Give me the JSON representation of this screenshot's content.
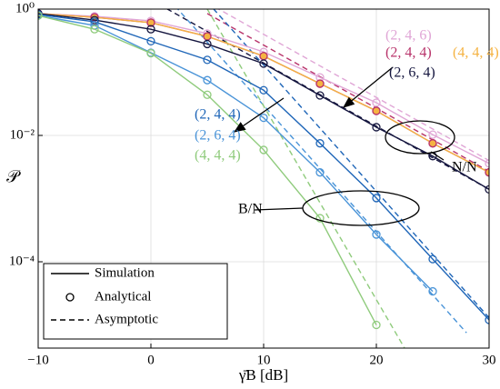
{
  "chart_data": {
    "type": "line",
    "log_y": true,
    "grid": true,
    "xlabel": "γ̄B [dB]",
    "ylabel": "𝒫",
    "xlim": [
      -10,
      30
    ],
    "ylim": [
      4.3e-06,
      1
    ],
    "xticks": [
      {
        "value": -10,
        "label": "−10"
      },
      0,
      10,
      20,
      30
    ],
    "yticks": [
      {
        "value": 1,
        "label": "10⁰"
      },
      {
        "value": 0.01,
        "label": "10⁻²"
      },
      {
        "value": 0.0001,
        "label": "10⁻⁴"
      }
    ],
    "x": [
      -10,
      -5,
      0,
      5,
      10,
      15,
      20,
      25,
      30
    ],
    "series": [
      {
        "color": "#e0a6d6",
        "style": "solid",
        "markers": true,
        "values": [
          0.85,
          0.77,
          0.65,
          0.41,
          0.21,
          0.083,
          0.033,
          0.0103,
          0.0036
        ]
      },
      {
        "color": "#b8336a",
        "style": "solid",
        "markers": true,
        "values": [
          0.85,
          0.74,
          0.61,
          0.37,
          0.18,
          0.066,
          0.0245,
          0.0075,
          0.0026
        ]
      },
      {
        "color": "#f5b342",
        "style": "solid",
        "markers": true,
        "marker_fill": "#f5b342",
        "values": [
          0.85,
          0.74,
          0.61,
          0.37,
          0.18,
          0.066,
          0.0245,
          0.0075,
          0.0026
        ]
      },
      {
        "color": "#15163f",
        "style": "solid",
        "markers": true,
        "values": [
          0.85,
          0.67,
          0.48,
          0.28,
          0.137,
          0.043,
          0.0135,
          0.0047,
          0.0014
        ]
      },
      {
        "color": "#1f66b8",
        "style": "solid",
        "markers": true,
        "values": [
          0.82,
          0.63,
          0.31,
          0.157,
          0.052,
          0.0075,
          0.00102,
          0.00011,
          1.2e-05
        ]
      },
      {
        "color": "#4a94d8",
        "style": "solid",
        "markers": true,
        "values": [
          0.79,
          0.55,
          0.204,
          0.075,
          0.019,
          0.0026,
          0.00027,
          3.4e-05,
          null
        ]
      },
      {
        "color": "#8fcb7c",
        "style": "solid",
        "markers": true,
        "values": [
          0.79,
          0.48,
          0.2,
          0.044,
          0.0059,
          0.00049,
          1e-05,
          null,
          null
        ]
      }
    ],
    "asymptotes": [
      {
        "color": "#e0a6d6",
        "x": [
          5,
          30
        ],
        "values": [
          1.26,
          0.004
        ]
      },
      {
        "color": "#b8336a",
        "x": [
          5,
          30
        ],
        "values": [
          0.85,
          0.0027
        ]
      },
      {
        "color": "#15163f",
        "x": [
          0,
          30
        ],
        "values": [
          1.4,
          0.0014
        ]
      },
      {
        "color": "#1f66b8",
        "x": [
          5,
          30
        ],
        "values": [
          1.3,
          1.3e-05
        ]
      },
      {
        "color": "#4a94d8",
        "x": [
          0,
          28
        ],
        "values": [
          3,
          7.5e-06
        ]
      },
      {
        "color": "#8fcb7c",
        "x": [
          5,
          22.5
        ],
        "values": [
          1,
          4.3e-06
        ]
      }
    ],
    "legend": {
      "corner": "lower left",
      "entries": [
        "Simulation",
        "Analytical",
        "Asymptotic"
      ]
    },
    "annotations": [
      {
        "text": "(2, 4, 6)",
        "color": "#e0a6d6"
      },
      {
        "text": "(2, 4, 4)",
        "color": "#b8336a"
      },
      {
        "text": "(4, 4, 4)",
        "color": "#f5b342"
      },
      {
        "text": "(2, 6, 4)",
        "color": "#15163f"
      },
      {
        "text": "(2, 4, 4)",
        "color": "#1f66b8"
      },
      {
        "text": "(2, 6, 4)",
        "color": "#4a94d8"
      },
      {
        "text": "(4, 4, 4)",
        "color": "#8fcb7c"
      },
      {
        "text": "N/N",
        "color": "#000000"
      },
      {
        "text": "B/N",
        "color": "#000000"
      }
    ]
  }
}
